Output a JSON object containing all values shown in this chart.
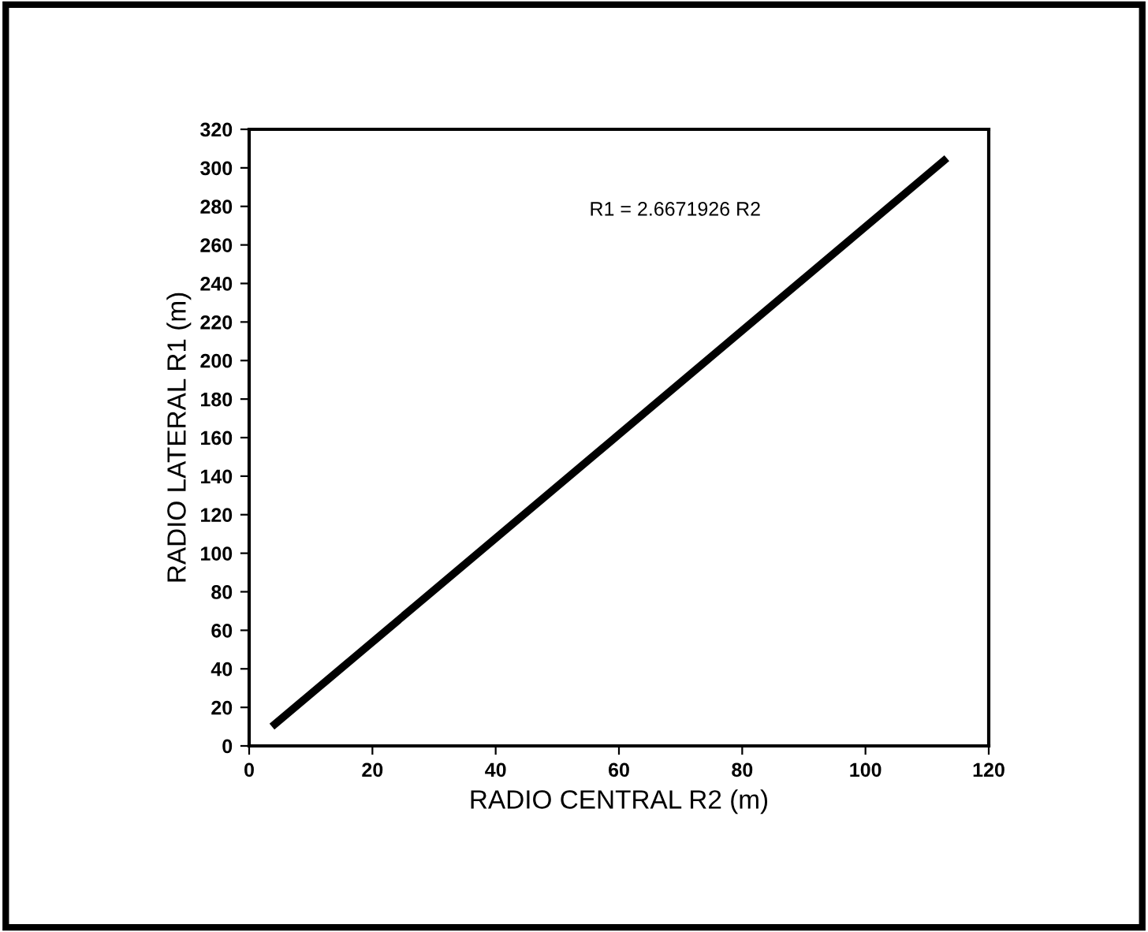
{
  "chart_data": {
    "type": "line",
    "xlabel": "RADIO CENTRAL R2 (m)",
    "ylabel": "RADIO LATERAL R1 (m)",
    "annotations": [
      "R1 = 2.6671926 R2"
    ],
    "series": [
      {
        "color": "#000000",
        "x": [
          3.7,
          113.2
        ],
        "values": [
          10,
          305
        ]
      }
    ],
    "xlim": [
      0,
      120
    ],
    "xticks": [
      0,
      20,
      40,
      60,
      80,
      100,
      120
    ],
    "ylim": [
      0,
      320
    ],
    "yticks": [
      0,
      20,
      40,
      60,
      80,
      100,
      120,
      140,
      160,
      180,
      200,
      220,
      240,
      260,
      280,
      300,
      320
    ],
    "grid": false,
    "legend": false,
    "marker": "none",
    "line_style": "solid"
  }
}
